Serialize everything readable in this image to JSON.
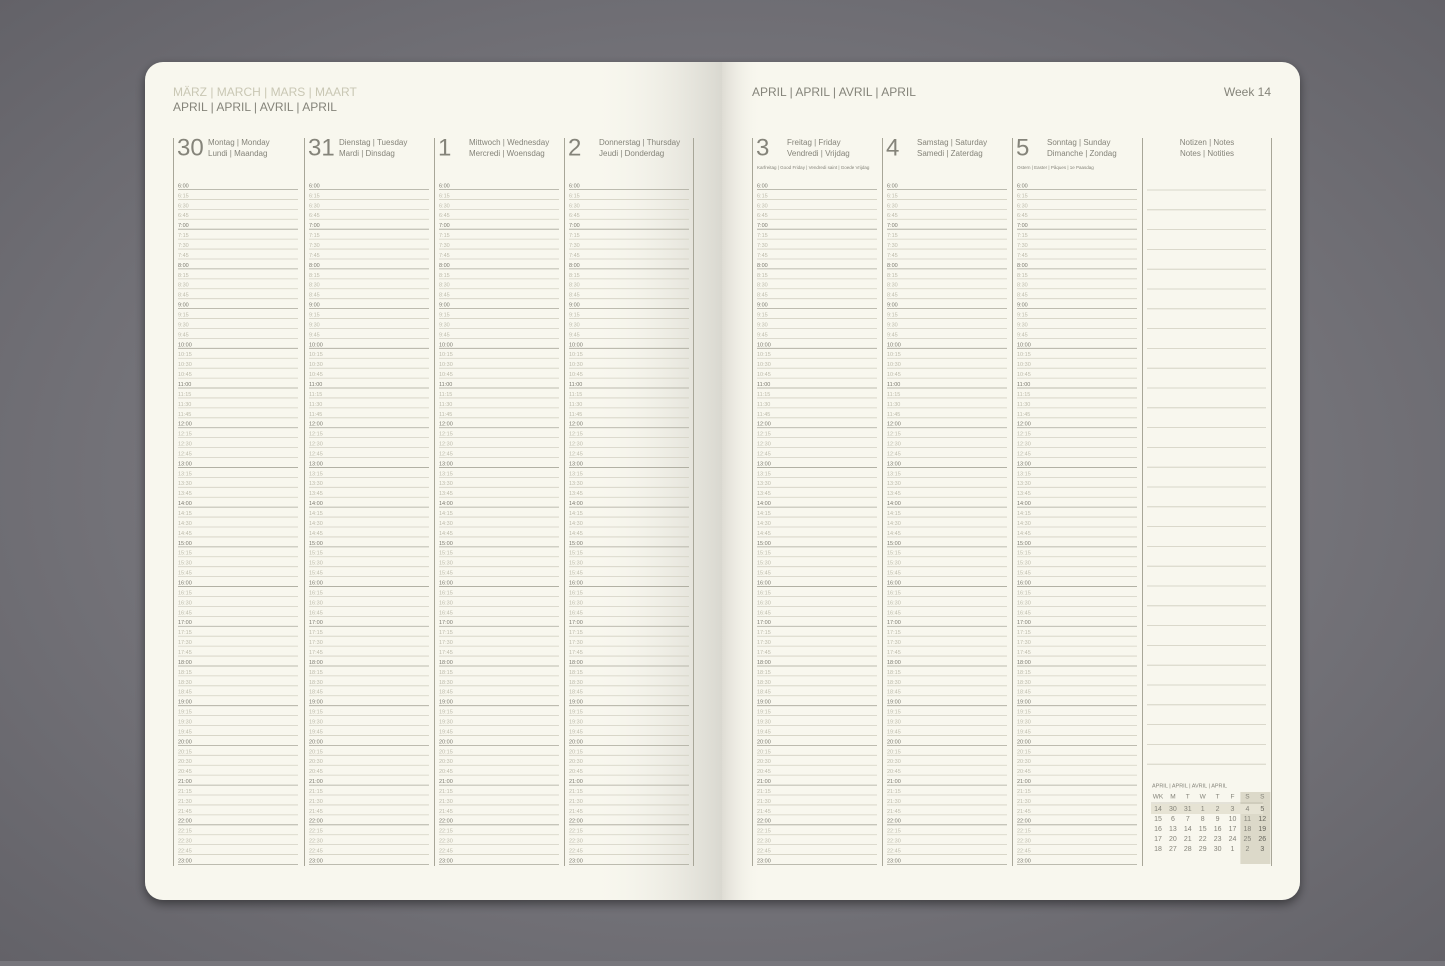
{
  "left_page": {
    "months_previous": "MÄRZ | MARCH | MARS | MAART",
    "months_current": "APRIL | APRIL | AVRIL | APRIL"
  },
  "right_page": {
    "month": "APRIL | APRIL | AVRIL | APRIL",
    "week": "Week 14"
  },
  "days": [
    {
      "date": "30",
      "names_1": "Montag | Monday",
      "names_2": "Lundi | Maandag"
    },
    {
      "date": "31",
      "names_1": "Dienstag | Tuesday",
      "names_2": "Mardi | Dinsdag"
    },
    {
      "date": "1",
      "names_1": "Mittwoch | Wednesday",
      "names_2": "Mercredi | Woensdag"
    },
    {
      "date": "2",
      "names_1": "Donnerstag | Thursday",
      "names_2": "Jeudi | Donderdag"
    },
    {
      "date": "3",
      "names_1": "Freitag | Friday",
      "names_2": "Vendredi | Vrijdag",
      "holiday": "Karfreitag | Good Friday | Vendredi saint | Goede Vrijdag"
    },
    {
      "date": "4",
      "names_1": "Samstag | Saturday",
      "names_2": "Samedi | Zaterdag"
    },
    {
      "date": "5",
      "names_1": "Sonntag | Sunday",
      "names_2": "Dimanche | Zondag",
      "holiday": "Ostern | Easter | Pâques | 1e Paasdag"
    }
  ],
  "times": [
    "6:00",
    "6:15",
    "6:30",
    "6:45",
    "7:00",
    "7:15",
    "7:30",
    "7:45",
    "8:00",
    "8:15",
    "8:30",
    "8:45",
    "9:00",
    "9:15",
    "9:30",
    "9:45",
    "10:00",
    "10:15",
    "10:30",
    "10:45",
    "11:00",
    "11:15",
    "11:30",
    "11:45",
    "12:00",
    "12:15",
    "12:30",
    "12:45",
    "13:00",
    "13:15",
    "13:30",
    "13:45",
    "14:00",
    "14:15",
    "14:30",
    "14:45",
    "15:00",
    "15:15",
    "15:30",
    "15:45",
    "16:00",
    "16:15",
    "16:30",
    "16:45",
    "17:00",
    "17:15",
    "17:30",
    "17:45",
    "18:00",
    "18:15",
    "18:30",
    "18:45",
    "19:00",
    "19:15",
    "19:30",
    "19:45",
    "20:00",
    "20:15",
    "20:30",
    "20:45",
    "21:00",
    "21:15",
    "21:30",
    "21:45",
    "22:00",
    "22:15",
    "22:30",
    "22:45",
    "23:00"
  ],
  "notes": {
    "line_1": "Notizen | Notes",
    "line_2": "Notes | Notities"
  },
  "mini_calendar": {
    "title": "APRIL | APRIL | AVRIL | APRIL",
    "header": [
      "WK",
      "M",
      "T",
      "W",
      "T",
      "F",
      "S",
      "S"
    ],
    "rows": [
      [
        "14",
        "30",
        "31",
        "1",
        "2",
        "3",
        "4",
        "5"
      ],
      [
        "15",
        "6",
        "7",
        "8",
        "9",
        "10",
        "11",
        "12"
      ],
      [
        "16",
        "13",
        "14",
        "15",
        "16",
        "17",
        "18",
        "19"
      ],
      [
        "17",
        "20",
        "21",
        "22",
        "23",
        "24",
        "25",
        "26"
      ],
      [
        "18",
        "27",
        "28",
        "29",
        "30",
        "1",
        "2",
        "3"
      ]
    ]
  }
}
